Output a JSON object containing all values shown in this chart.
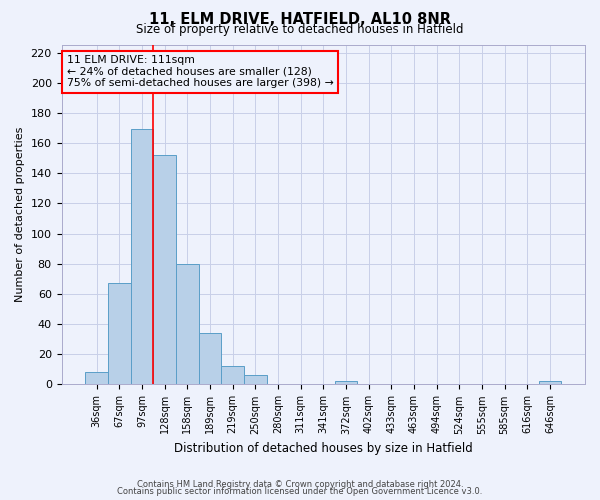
{
  "title": "11, ELM DRIVE, HATFIELD, AL10 8NR",
  "subtitle": "Size of property relative to detached houses in Hatfield",
  "xlabel": "Distribution of detached houses by size in Hatfield",
  "ylabel": "Number of detached properties",
  "bar_labels": [
    "36sqm",
    "67sqm",
    "97sqm",
    "128sqm",
    "158sqm",
    "189sqm",
    "219sqm",
    "250sqm",
    "280sqm",
    "311sqm",
    "341sqm",
    "372sqm",
    "402sqm",
    "433sqm",
    "463sqm",
    "494sqm",
    "524sqm",
    "555sqm",
    "585sqm",
    "616sqm",
    "646sqm"
  ],
  "bar_values": [
    8,
    67,
    169,
    152,
    80,
    34,
    12,
    6,
    0,
    0,
    0,
    2,
    0,
    0,
    0,
    0,
    0,
    0,
    0,
    0,
    2
  ],
  "bar_color": "#b8d0e8",
  "bar_edge_color": "#5a9ec8",
  "ylim": [
    0,
    225
  ],
  "yticks": [
    0,
    20,
    40,
    60,
    80,
    100,
    120,
    140,
    160,
    180,
    200,
    220
  ],
  "vline_color": "red",
  "annotation_line1": "11 ELM DRIVE: 111sqm",
  "annotation_line2": "← 24% of detached houses are smaller (128)",
  "annotation_line3": "75% of semi-detached houses are larger (398) →",
  "footnote1": "Contains HM Land Registry data © Crown copyright and database right 2024.",
  "footnote2": "Contains public sector information licensed under the Open Government Licence v3.0.",
  "background_color": "#eef2fc",
  "grid_color": "#c8cfe8"
}
